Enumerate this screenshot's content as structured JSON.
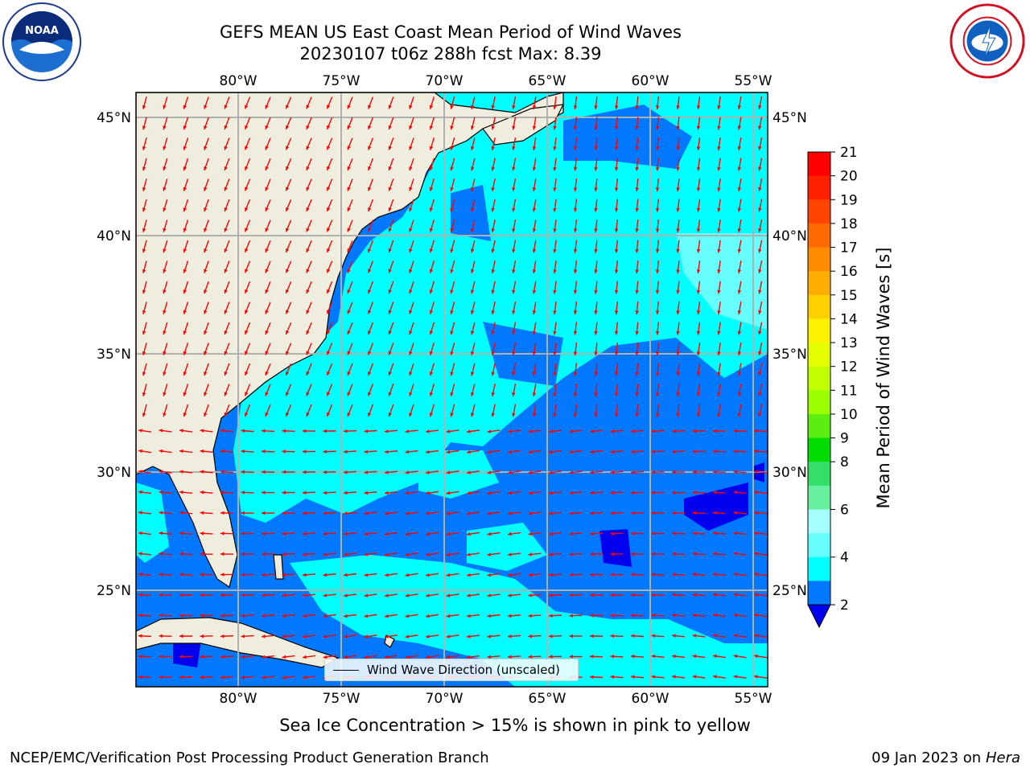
{
  "header": {
    "title_line1": "GEFS MEAN US East Coast Mean Period of Wind Waves",
    "title_line2": "20230107 t06z 288h fcst   Max: 8.39"
  },
  "map": {
    "lon_labels": [
      "80°W",
      "75°W",
      "70°W",
      "65°W",
      "60°W",
      "55°W"
    ],
    "lat_labels": [
      "45°N",
      "40°N",
      "35°N",
      "30°N",
      "25°N"
    ],
    "colors": {
      "land": "#efedde",
      "ocean_2_4": "#0078ff",
      "ocean_4_6": "#00ffff",
      "ocean_6_8": "#66ffff",
      "ocean_lt_2": "#0000ee",
      "arrow": "#ff0000",
      "grid": "#b0b0b0"
    }
  },
  "legend": {
    "label": "Wind Wave Direction (unscaled)"
  },
  "colorbar": {
    "title": "Mean Period of Wind Waves [s]",
    "ticks": [
      "21",
      "20",
      "19",
      "18",
      "17",
      "16",
      "15",
      "14",
      "13",
      "12",
      "11",
      "10",
      "9",
      "8",
      "6",
      "4",
      "2"
    ],
    "colors": [
      "#ff0000",
      "#ff2000",
      "#ff4500",
      "#ff6a00",
      "#ff8c00",
      "#ffae00",
      "#ffd000",
      "#fff200",
      "#e6ff00",
      "#c2ff00",
      "#9cff00",
      "#5cee10",
      "#00dd00",
      "#33e066",
      "#66f0a0",
      "#a6ffff",
      "#66ffff",
      "#00ffff",
      "#0078ff"
    ],
    "extend_color": "#0000ee"
  },
  "sea_ice_note": "Sea Ice Concentration > 15% is shown in pink to yellow",
  "footer": {
    "left": "NCEP/EMC/Verification Post Processing Product Generation Branch",
    "date": "09 Jan 2023 on ",
    "machine": "Hera"
  }
}
